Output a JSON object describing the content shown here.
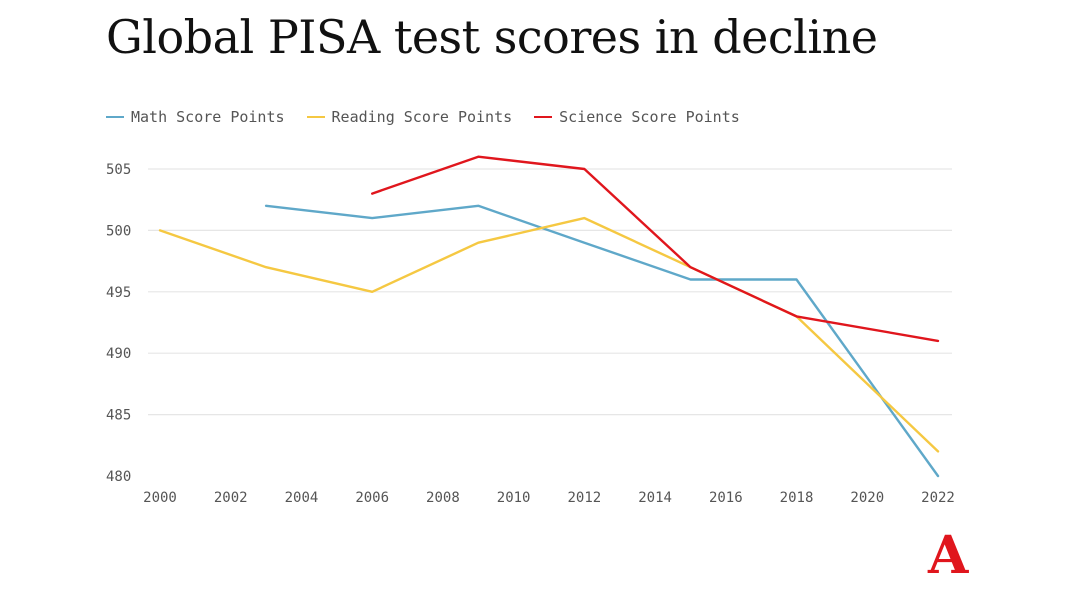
{
  "title": "Global PISA test scores in decline",
  "logo": {
    "text": "A",
    "color": "#e0161d"
  },
  "chart_data": {
    "type": "line",
    "title": "Global PISA test scores in decline",
    "xlabel": "",
    "ylabel": "",
    "xlim": [
      2000,
      2022
    ],
    "ylim": [
      480,
      506
    ],
    "x_ticks": [
      "2000",
      "2002",
      "2004",
      "2006",
      "2008",
      "2010",
      "2012",
      "2014",
      "2016",
      "2018",
      "2020",
      "2022"
    ],
    "y_ticks": [
      "480",
      "485",
      "490",
      "495",
      "500",
      "505"
    ],
    "grid": "horizontal",
    "legend_position": "top-left",
    "series": [
      {
        "name": "Math Score Points",
        "color": "#5fa8c9",
        "points": [
          [
            2003,
            502
          ],
          [
            2006,
            501
          ],
          [
            2009,
            502
          ],
          [
            2012,
            499
          ],
          [
            2015,
            496
          ],
          [
            2018,
            496
          ],
          [
            2022,
            480
          ]
        ]
      },
      {
        "name": "Reading Score Points",
        "color": "#f5c842",
        "points": [
          [
            2000,
            500
          ],
          [
            2003,
            497
          ],
          [
            2006,
            495
          ],
          [
            2009,
            499
          ],
          [
            2012,
            501
          ],
          [
            2015,
            497
          ],
          [
            2018,
            493
          ],
          [
            2022,
            482
          ]
        ]
      },
      {
        "name": "Science Score Points",
        "color": "#e0161d",
        "points": [
          [
            2006,
            503
          ],
          [
            2009,
            506
          ],
          [
            2012,
            505
          ],
          [
            2015,
            497
          ],
          [
            2018,
            493
          ],
          [
            2022,
            491
          ]
        ]
      }
    ]
  }
}
